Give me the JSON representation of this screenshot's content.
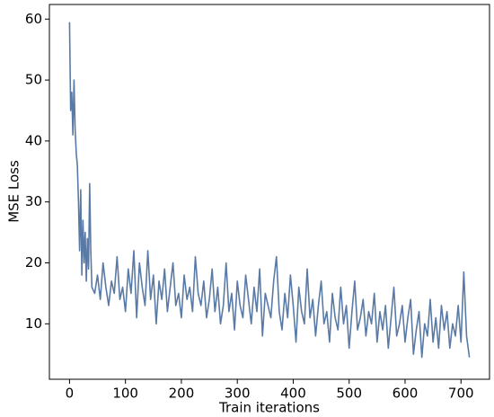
{
  "chart_data": {
    "type": "line",
    "x_label": "Train iterations",
    "y_label": "MSE Loss",
    "x": [
      0,
      2,
      4,
      6,
      8,
      10,
      12,
      14,
      16,
      18,
      20,
      22,
      24,
      26,
      28,
      30,
      32,
      34,
      36,
      38,
      40,
      45,
      50,
      55,
      60,
      65,
      70,
      75,
      80,
      85,
      90,
      95,
      100,
      105,
      110,
      115,
      120,
      125,
      130,
      135,
      140,
      145,
      150,
      155,
      160,
      165,
      170,
      175,
      180,
      185,
      190,
      195,
      200,
      205,
      210,
      215,
      220,
      225,
      230,
      235,
      240,
      245,
      250,
      255,
      260,
      265,
      270,
      275,
      280,
      285,
      290,
      295,
      300,
      305,
      310,
      315,
      320,
      325,
      330,
      335,
      340,
      345,
      350,
      355,
      360,
      365,
      370,
      375,
      380,
      385,
      390,
      395,
      400,
      405,
      410,
      415,
      420,
      425,
      430,
      435,
      440,
      445,
      450,
      455,
      460,
      465,
      470,
      475,
      480,
      485,
      490,
      495,
      500,
      505,
      510,
      515,
      520,
      525,
      530,
      535,
      540,
      545,
      550,
      555,
      560,
      565,
      570,
      575,
      580,
      585,
      590,
      595,
      600,
      605,
      610,
      615,
      620,
      625,
      630,
      635,
      640,
      645,
      650,
      655,
      660,
      665,
      670,
      675,
      680,
      685,
      690,
      695,
      700,
      705,
      710,
      715
    ],
    "series": [
      {
        "name": "MSE Loss",
        "color": "#5a7aa6",
        "values": [
          59.5,
          45,
          48,
          41,
          50,
          42,
          38,
          36,
          30,
          22,
          32,
          18,
          27,
          20,
          25,
          17,
          24,
          19,
          33,
          22,
          16,
          15,
          18,
          14,
          20,
          16,
          13,
          17,
          15,
          21,
          14,
          16,
          12,
          19,
          15,
          22,
          11,
          20,
          16,
          13,
          22,
          14,
          18,
          10,
          17,
          14,
          19,
          12,
          16,
          20,
          13,
          15,
          11,
          18,
          14,
          16,
          12,
          21,
          15,
          13,
          17,
          11,
          14,
          19,
          12,
          16,
          10,
          13,
          20,
          12,
          15,
          9,
          17,
          13,
          11,
          18,
          14,
          10,
          16,
          12,
          19,
          8,
          15,
          13,
          11,
          17,
          21,
          12,
          9,
          15,
          11,
          18,
          13,
          7,
          16,
          12,
          10,
          19,
          11,
          14,
          8,
          13,
          17,
          10,
          12,
          7,
          15,
          11,
          9,
          16,
          10,
          13,
          6,
          12,
          17,
          9,
          11,
          14,
          8,
          12,
          10,
          15,
          7,
          12,
          9,
          13,
          6,
          11,
          16,
          8,
          10,
          13,
          7,
          11,
          14,
          5,
          9,
          12,
          4.5,
          10,
          8,
          14,
          7,
          11,
          6,
          13,
          9,
          12,
          6,
          10,
          8,
          13,
          7,
          18.5,
          8,
          4.5
        ]
      }
    ],
    "xlim": [
      -36,
      751
    ],
    "ylim": [
      0.9,
      62.4
    ],
    "xticks": [
      0,
      100,
      200,
      300,
      400,
      500,
      600,
      700
    ],
    "yticks": [
      10,
      20,
      30,
      40,
      50,
      60
    ]
  }
}
